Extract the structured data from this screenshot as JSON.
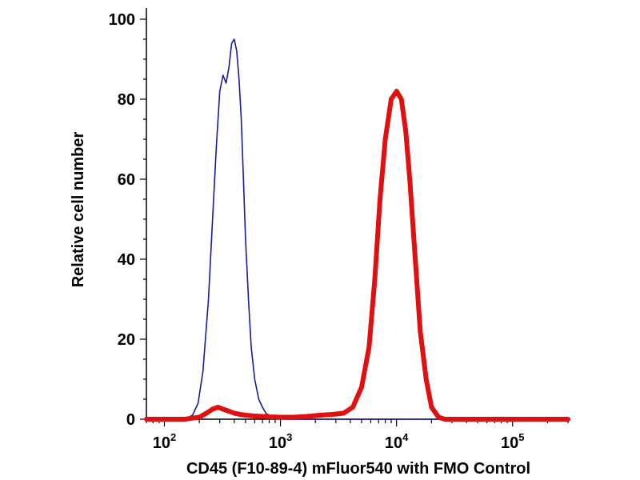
{
  "chart_data": {
    "type": "line",
    "xlabel": "CD45 (F10-89-4) mFluor540 with FMO Control",
    "ylabel": "Relative cell number",
    "x_scale": "log",
    "xlim": [
      70,
      300000
    ],
    "ylim": [
      0,
      100
    ],
    "x_ticks": [
      {
        "value": 100,
        "base": "10",
        "exp": "2"
      },
      {
        "value": 1000,
        "base": "10",
        "exp": "3"
      },
      {
        "value": 10000,
        "base": "10",
        "exp": "4"
      },
      {
        "value": 100000,
        "base": "10",
        "exp": "5"
      }
    ],
    "y_ticks": [
      {
        "value": 0,
        "label": "0"
      },
      {
        "value": 20,
        "label": "20"
      },
      {
        "value": 40,
        "label": "40"
      },
      {
        "value": 60,
        "label": "60"
      },
      {
        "value": 80,
        "label": "80"
      },
      {
        "value": 100,
        "label": "100"
      }
    ],
    "grid": false,
    "series": [
      {
        "color": "#1a1aa0",
        "x": [
          70,
          150,
          175,
          195,
          215,
          240,
          260,
          280,
          300,
          320,
          340,
          360,
          380,
          400,
          420,
          440,
          460,
          480,
          500,
          530,
          560,
          600,
          650,
          700,
          750,
          800,
          900,
          1100,
          1500,
          3000,
          10000,
          50000,
          300000
        ],
        "y": [
          0,
          0,
          1,
          4,
          12,
          30,
          50,
          68,
          82,
          86,
          84,
          88,
          94,
          95,
          92,
          85,
          75,
          60,
          45,
          30,
          18,
          10,
          5,
          3,
          1.5,
          1,
          0.5,
          0,
          0,
          0,
          0,
          0,
          0
        ]
      },
      {
        "color": "#e01010",
        "x": [
          70,
          150,
          200,
          230,
          260,
          290,
          320,
          360,
          400,
          450,
          500,
          600,
          700,
          800,
          1000,
          1300,
          1700,
          2200,
          2800,
          3500,
          4200,
          5000,
          5800,
          6500,
          7200,
          8000,
          9000,
          10000,
          11000,
          12000,
          13000,
          14500,
          16000,
          18000,
          20000,
          23000,
          26000,
          30000,
          50000,
          300000
        ],
        "y": [
          0,
          0,
          0.5,
          1.5,
          2.5,
          3,
          2.5,
          2,
          1.5,
          1.2,
          1,
          0.8,
          0.7,
          0.6,
          0.5,
          0.5,
          0.7,
          1,
          1.2,
          1.5,
          3,
          8,
          18,
          35,
          55,
          70,
          80,
          82,
          80,
          72,
          60,
          40,
          22,
          10,
          3,
          0.5,
          0,
          0,
          0,
          0
        ]
      }
    ]
  }
}
